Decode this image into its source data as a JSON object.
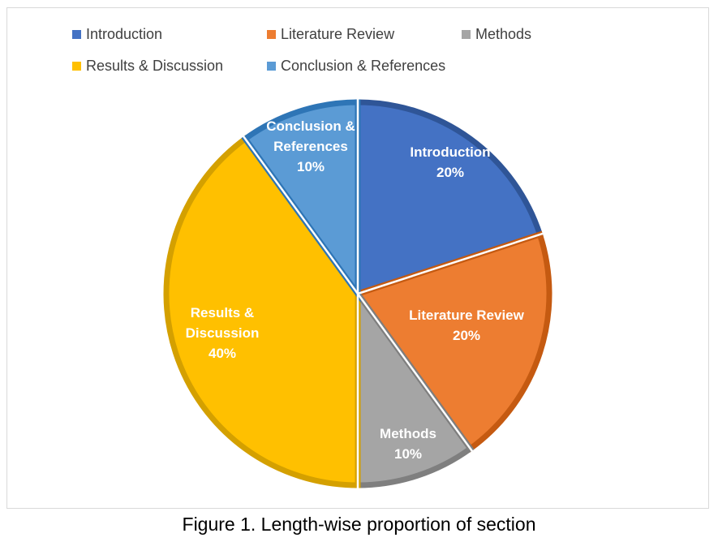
{
  "chart_data": {
    "type": "pie",
    "title": "",
    "slices": [
      {
        "name": "Introduction",
        "value": 20,
        "color": "#4472c4",
        "edge": "#2f5597",
        "label_lines": [
          "Introduction",
          "20%"
        ]
      },
      {
        "name": "Literature Review",
        "value": 20,
        "color": "#ed7d31",
        "edge": "#c55a11",
        "label_lines": [
          "Literature Review",
          "20%"
        ]
      },
      {
        "name": "Methods",
        "value": 10,
        "color": "#a5a5a5",
        "edge": "#7f7f7f",
        "label_lines": [
          "Methods",
          "10%"
        ]
      },
      {
        "name": "Results & Discussion",
        "value": 40,
        "color": "#ffc000",
        "edge": "#d4a000",
        "label_lines": [
          "Results &",
          "Discussion",
          "40%"
        ]
      },
      {
        "name": "Conclusion & References",
        "value": 10,
        "color": "#5b9bd5",
        "edge": "#2e75b6",
        "label_lines": [
          "Conclusion &",
          "References",
          "10%"
        ]
      }
    ],
    "legend_position": "top"
  },
  "caption": "Figure 1. Length-wise proportion of section"
}
